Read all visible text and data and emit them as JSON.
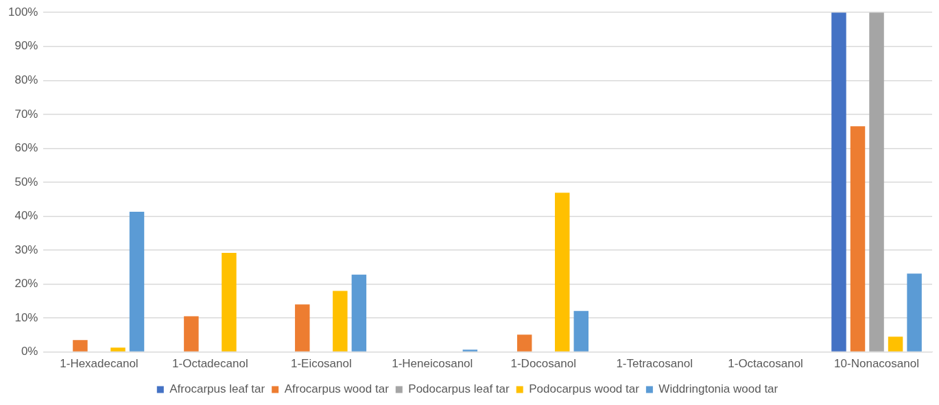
{
  "chart_data": {
    "type": "bar",
    "categories": [
      "1-Hexadecanol",
      "1-Octadecanol",
      "1-Eicosanol",
      "1-Heneicosanol",
      "1-Docosanol",
      "1-Tetracosanol",
      "1-Octacosanol",
      "10-Nonacosanol"
    ],
    "series": [
      {
        "name": "Afrocarpus leaf tar",
        "color": "#4472c4",
        "values": [
          0,
          0,
          0,
          0,
          0,
          0,
          0,
          100
        ]
      },
      {
        "name": "Afrocarpus wood tar",
        "color": "#ed7d31",
        "values": [
          3.5,
          10.5,
          14,
          0,
          5.1,
          0,
          0,
          66.5
        ]
      },
      {
        "name": "Podocarpus leaf tar",
        "color": "#a5a5a5",
        "values": [
          0,
          0,
          0,
          0,
          0,
          0,
          0,
          100
        ]
      },
      {
        "name": "Podocarpus wood tar",
        "color": "#ffc000",
        "values": [
          1.3,
          29.2,
          18,
          0,
          46.9,
          0,
          null,
          4.5
        ]
      },
      {
        "name": "Widdringtonia wood tar",
        "color": "#5b9bd5",
        "values": [
          41.3,
          0,
          22.8,
          0.7,
          12.1,
          0,
          0,
          23.1
        ]
      }
    ],
    "ylim": [
      0,
      100
    ],
    "yticks": [
      {
        "value": 0,
        "label": "0%"
      },
      {
        "value": 10,
        "label": "10%"
      },
      {
        "value": 20,
        "label": "20%"
      },
      {
        "value": 30,
        "label": "30%"
      },
      {
        "value": 40,
        "label": "40%"
      },
      {
        "value": 50,
        "label": "50%"
      },
      {
        "value": 60,
        "label": "60%"
      },
      {
        "value": 70,
        "label": "70%"
      },
      {
        "value": 80,
        "label": "80%"
      },
      {
        "value": 90,
        "label": "90%"
      },
      {
        "value": 100,
        "label": "100%"
      }
    ],
    "grid": "y",
    "legend": "bottom"
  }
}
